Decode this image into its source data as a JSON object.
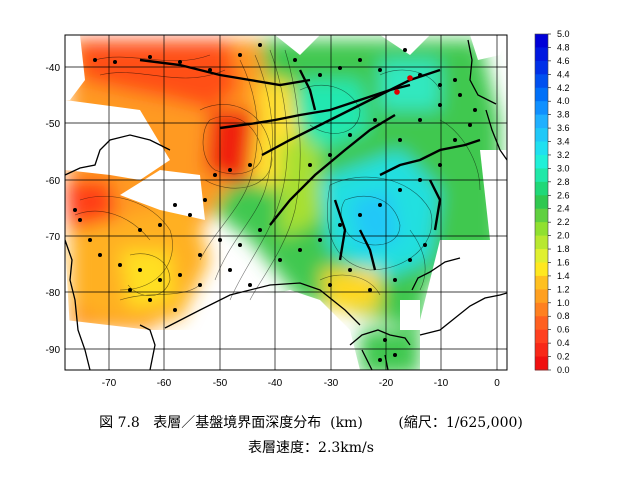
{
  "map": {
    "x_ticks": [
      "-70",
      "-60",
      "-50",
      "-40",
      "-30",
      "-20",
      "-10",
      "0"
    ],
    "y_ticks": [
      "-40",
      "-50",
      "-60",
      "-70",
      "-80",
      "-90"
    ],
    "x_range": [
      -77.5,
      2
    ],
    "y_range": [
      -95,
      -34
    ]
  },
  "color_scale": {
    "labels": [
      "5.0",
      "4.8",
      "4.6",
      "4.4",
      "4.2",
      "4.0",
      "3.8",
      "3.6",
      "3.4",
      "3.2",
      "3.0",
      "2.8",
      "2.6",
      "2.4",
      "2.2",
      "2.0",
      "1.8",
      "1.6",
      "1.4",
      "1.2",
      "1.0",
      "0.8",
      "0.6",
      "0.4",
      "0.2",
      "0.0"
    ],
    "colors": [
      "#0000d8",
      "#0018e0",
      "#0030e8",
      "#0050f0",
      "#0070f8",
      "#1090ff",
      "#20b0ff",
      "#20c8f8",
      "#20e0f0",
      "#20f0d8",
      "#20e8a8",
      "#20d878",
      "#30c850",
      "#60d040",
      "#90e030",
      "#b8e830",
      "#e0f030",
      "#ffe820",
      "#ffc020",
      "#ffa020",
      "#ff8020",
      "#ff6020",
      "#ff4020",
      "#f82818",
      "#f01010",
      "#e80000"
    ]
  },
  "caption": {
    "fig_no": "図 7.8",
    "title": "表層／基盤境界面深度分布",
    "unit": "(km)",
    "scale": "(縮尺：1/625,000)",
    "velocity": "表層速度：2.3km/s"
  }
}
